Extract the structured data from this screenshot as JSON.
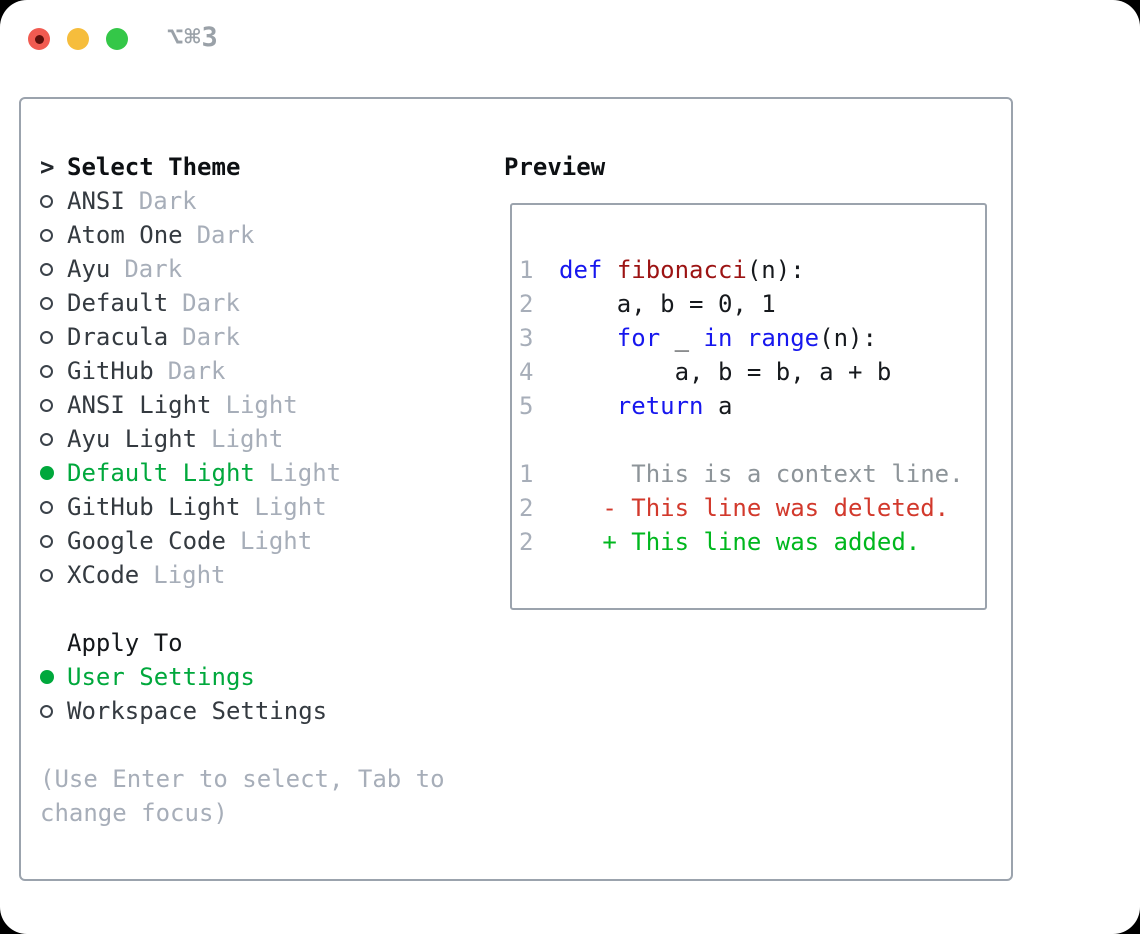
{
  "window": {
    "title": "⌥⌘3"
  },
  "theme_list": {
    "cursor": ">",
    "heading": "Select Theme",
    "items": [
      {
        "name": "ANSI",
        "variant": "Dark",
        "selected": false
      },
      {
        "name": "Atom One",
        "variant": "Dark",
        "selected": false
      },
      {
        "name": "Ayu",
        "variant": "Dark",
        "selected": false
      },
      {
        "name": "Default",
        "variant": "Dark",
        "selected": false
      },
      {
        "name": "Dracula",
        "variant": "Dark",
        "selected": false
      },
      {
        "name": "GitHub",
        "variant": "Dark",
        "selected": false
      },
      {
        "name": "ANSI Light",
        "variant": "Light",
        "selected": false
      },
      {
        "name": "Ayu Light",
        "variant": "Light",
        "selected": false
      },
      {
        "name": "Default Light",
        "variant": "Light",
        "selected": true
      },
      {
        "name": "GitHub Light",
        "variant": "Light",
        "selected": false
      },
      {
        "name": "Google Code",
        "variant": "Light",
        "selected": false
      },
      {
        "name": "XCode",
        "variant": "Light",
        "selected": false
      }
    ]
  },
  "apply_to": {
    "heading": "Apply To",
    "options": [
      {
        "label": "User Settings",
        "selected": true
      },
      {
        "label": "Workspace Settings",
        "selected": false
      }
    ]
  },
  "hint": "(Use Enter to select, Tab to change focus)",
  "preview": {
    "heading": "Preview",
    "code_lines": [
      {
        "num": "1",
        "segments": [
          {
            "t": "def",
            "c": "kw"
          },
          {
            "t": " ",
            "c": "plain"
          },
          {
            "t": "fibonacci",
            "c": "fn"
          },
          {
            "t": "(n):",
            "c": "plain"
          }
        ]
      },
      {
        "num": "2",
        "segments": [
          {
            "t": "    a, b = 0, 1",
            "c": "plain"
          }
        ]
      },
      {
        "num": "3",
        "segments": [
          {
            "t": "    ",
            "c": "plain"
          },
          {
            "t": "for",
            "c": "kw"
          },
          {
            "t": " _ ",
            "c": "plain"
          },
          {
            "t": "in",
            "c": "kw"
          },
          {
            "t": " ",
            "c": "plain"
          },
          {
            "t": "range",
            "c": "kw"
          },
          {
            "t": "(n):",
            "c": "plain"
          }
        ]
      },
      {
        "num": "4",
        "segments": [
          {
            "t": "        a, b = b, a + b",
            "c": "plain"
          }
        ]
      },
      {
        "num": "5",
        "segments": [
          {
            "t": "    ",
            "c": "plain"
          },
          {
            "t": "return",
            "c": "kw"
          },
          {
            "t": " a",
            "c": "plain"
          }
        ]
      },
      {
        "num": "",
        "segments": []
      },
      {
        "num": "1",
        "segments": [
          {
            "t": "     This is a context line.",
            "c": "ctx"
          }
        ]
      },
      {
        "num": "2",
        "segments": [
          {
            "t": "   - This line was deleted.",
            "c": "del"
          }
        ]
      },
      {
        "num": "2",
        "segments": [
          {
            "t": "   + This line was added.",
            "c": "add"
          }
        ]
      }
    ]
  },
  "colors": {
    "selection_green": "#00a83c",
    "diff_added_green": "#00b71e",
    "diff_deleted_red": "#d2392c",
    "keyword_blue": "#1717ee",
    "function_red": "#9c1313",
    "muted_gray": "#a7aeb9",
    "panel_border_gray": "#9ba3ad",
    "traffic_red": "#f15b51",
    "traffic_yellow": "#f6bd3c",
    "traffic_green": "#34c748"
  }
}
